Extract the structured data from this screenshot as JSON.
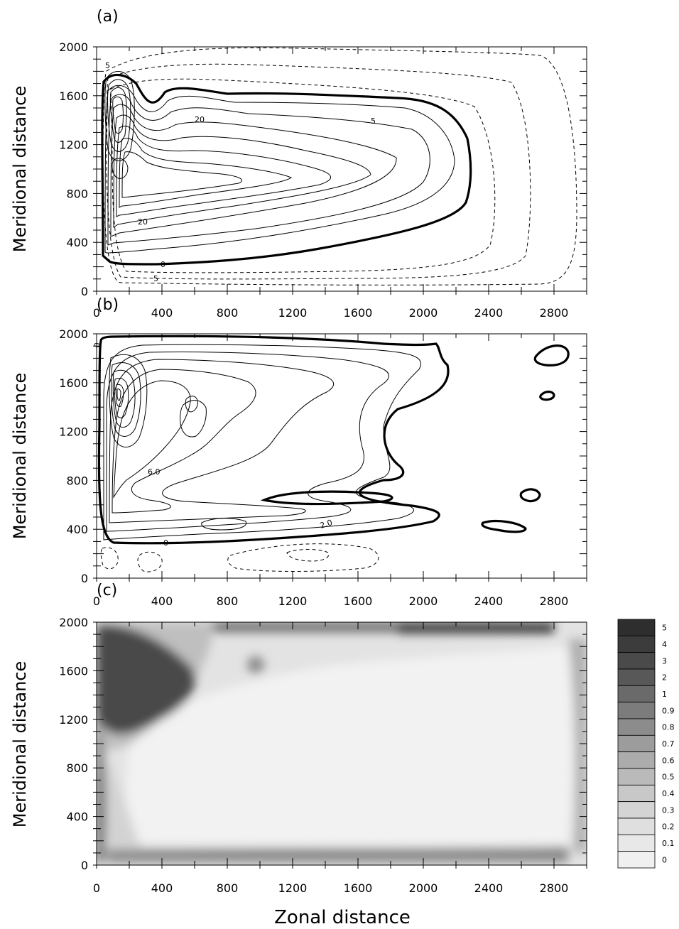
{
  "chart_data": [
    {
      "type": "contour",
      "panel_label": "(a)",
      "ylabel": "Meridional distance",
      "xlabel": "",
      "xlim": [
        0,
        3000
      ],
      "ylim": [
        0,
        2000
      ],
      "xticks": [
        "0",
        "400",
        "800",
        "1200",
        "1600",
        "2000",
        "2400",
        "2800"
      ],
      "yticks": [
        "0",
        "400",
        "800",
        "1200",
        "1600",
        "2000"
      ],
      "contour_labels": [
        "5",
        "20",
        "5",
        "20",
        "0",
        "5"
      ]
    },
    {
      "type": "contour",
      "panel_label": "(b)",
      "ylabel": "Meridional distance",
      "xlabel": "",
      "xlim": [
        0,
        3000
      ],
      "ylim": [
        0,
        2000
      ],
      "xticks": [
        "0",
        "400",
        "800",
        "1200",
        "1600",
        "2000",
        "2400",
        "2800"
      ],
      "yticks": [
        "0",
        "400",
        "800",
        "1200",
        "1600",
        "2000"
      ],
      "contour_labels": [
        "0",
        "6.0",
        "2.0",
        "0"
      ]
    },
    {
      "type": "heatmap",
      "panel_label": "(c)",
      "ylabel": "Meridional distance",
      "xlabel": "Zonal distance",
      "xlim": [
        0,
        3000
      ],
      "ylim": [
        0,
        2000
      ],
      "xticks": [
        "0",
        "400",
        "800",
        "1200",
        "1600",
        "2000",
        "2400",
        "2800"
      ],
      "yticks": [
        "0",
        "400",
        "800",
        "1200",
        "1600",
        "2000"
      ],
      "colorbar_levels": [
        "5",
        "4",
        "3",
        "2",
        "1",
        "0.9",
        "0.8",
        "0.7",
        "0.6",
        "0.5",
        "0.4",
        "0.3",
        "0.2",
        "0.1",
        "0"
      ],
      "colorbar_colors": [
        "#2e2e2e",
        "#3c3c3c",
        "#4a4a4a",
        "#585858",
        "#6a6a6a",
        "#7c7c7c",
        "#8c8c8c",
        "#9c9c9c",
        "#acacac",
        "#bababa",
        "#c8c8c8",
        "#d4d4d4",
        "#dfdfdf",
        "#e8e8e8",
        "#f0f0f0"
      ]
    }
  ]
}
